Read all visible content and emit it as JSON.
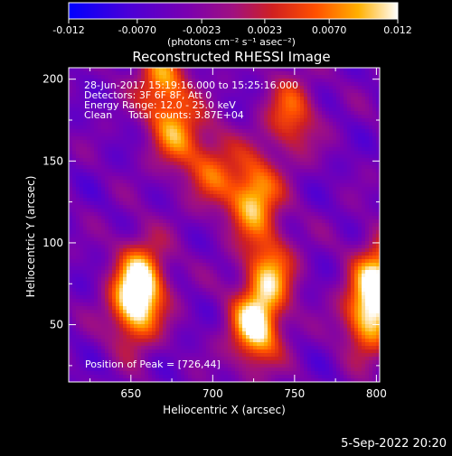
{
  "chart_data": {
    "type": "heatmap",
    "title": "Reconstructed RHESSI Image",
    "xlabel": "Heliocentric X (arcsec)",
    "ylabel": "Heliocentric Y (arcsec)",
    "xlim": [
      612,
      802
    ],
    "ylim": [
      15,
      207
    ],
    "x_ticks": [
      650,
      700,
      750,
      800
    ],
    "y_ticks": [
      50,
      100,
      150,
      200
    ],
    "colorbar": {
      "ticks": [
        "-0.012",
        "-0.0070",
        "-0.0023",
        "0.0023",
        "0.0070",
        "0.012"
      ],
      "range": [
        -0.012,
        0.012
      ],
      "units_label": "(photons cm⁻² s⁻¹ asec⁻²)"
    },
    "annotations": {
      "time_range": "28-Jun-2017 15:19:16.000 to 15:25:16.000",
      "detectors": "Detectors: 3F 6F 8F, Att 0",
      "energy": "Energy Range: 12.0 - 25.0 keV",
      "method": "Clean",
      "counts": "Total counts: 3.87E+04",
      "peak": "Position of Peak = [726,44]"
    },
    "peak_position": [
      726,
      44
    ],
    "sources": [
      {
        "x": 725,
        "y": 128,
        "peak": 0.0105
      },
      {
        "x": 726,
        "y": 48,
        "peak": 0.012
      },
      {
        "x": 735,
        "y": 82,
        "peak": 0.0075
      },
      {
        "x": 652,
        "y": 60,
        "peak": 0.0095
      },
      {
        "x": 657,
        "y": 80,
        "peak": 0.0075
      },
      {
        "x": 795,
        "y": 55,
        "peak": 0.0098
      },
      {
        "x": 803,
        "y": 80,
        "peak": 0.009
      },
      {
        "x": 668,
        "y": 200,
        "peak": 0.007
      },
      {
        "x": 678,
        "y": 168,
        "peak": 0.0065
      },
      {
        "x": 748,
        "y": 178,
        "peak": 0.006
      },
      {
        "x": 700,
        "y": 145,
        "peak": 0.0045
      }
    ]
  },
  "footer": {
    "date": "5-Sep-2022 20:20"
  }
}
